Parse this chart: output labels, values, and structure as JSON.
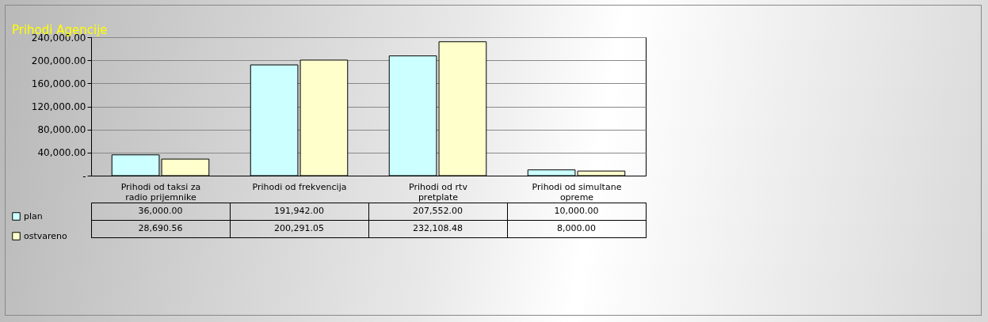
{
  "chart_data": {
    "type": "bar",
    "title": "Prihodi Agencije",
    "categories": [
      "Prihodi od taksi za radio prijemnike",
      "Prihodi od frekvencija",
      "Prihodi od rtv pretplate",
      "Prihodi od simultane opreme"
    ],
    "series": [
      {
        "name": "plan",
        "color": "#ccffff",
        "values": [
          36000,
          191942,
          207552,
          10000
        ],
        "value_labels": [
          "36,000.00",
          "191,942.00",
          "207,552.00",
          "10,000.00"
        ]
      },
      {
        "name": "ostvareno",
        "color": "#ffffcc",
        "values": [
          28690.56,
          200291.05,
          232108.48,
          8000
        ],
        "value_labels": [
          "28,690.56",
          "200,291.05",
          "232,108.48",
          "8,000.00"
        ]
      }
    ],
    "ylim": [
      0,
      240000
    ],
    "yticks": [
      {
        "value": 0,
        "label": "-"
      },
      {
        "value": 40000,
        "label": "40,000.00"
      },
      {
        "value": 80000,
        "label": "80,000.00"
      },
      {
        "value": 120000,
        "label": "120,000.00"
      },
      {
        "value": 160000,
        "label": "160,000.00"
      },
      {
        "value": 200000,
        "label": "200,000.00"
      },
      {
        "value": 240000,
        "label": "240,000.00"
      }
    ],
    "grid": "y",
    "legend": "bottom"
  }
}
